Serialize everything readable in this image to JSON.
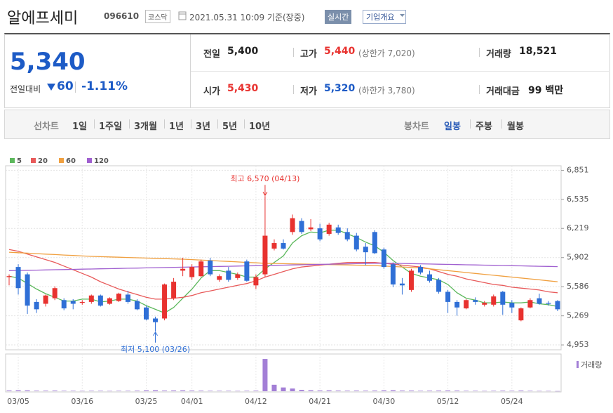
{
  "header": {
    "title": "알에프세미",
    "code": "096610",
    "market": "코스닥",
    "datetime": "2021.05.31 10:09 기준(장중)",
    "realtime": "실시간",
    "company": "기업개요"
  },
  "summary": {
    "price": "5,340",
    "change_label": "전일대비",
    "change": "60",
    "change_pct": "-1.11%",
    "rows": [
      [
        {
          "label": "전일",
          "value": "5,400"
        },
        {
          "label": "고가",
          "value": "5,440",
          "note": "(상한가 7,020)"
        },
        {
          "label": "거래량",
          "value": "18,521"
        }
      ],
      [
        {
          "label": "시가",
          "value": "5,430"
        },
        {
          "label": "저가",
          "value": "5,320",
          "note": "(하한가 3,780)"
        },
        {
          "label": "거래대금",
          "value": "99 백만"
        }
      ]
    ]
  },
  "tabs": {
    "line_chart": "선차트",
    "line_periods": [
      "1일",
      "1주일",
      "3개월",
      "1년",
      "3년",
      "5년",
      "10년"
    ],
    "candle_chart": "봉차트",
    "candle_periods": [
      "일봉",
      "주봉",
      "월봉"
    ]
  },
  "chart_data": [
    {
      "type": "candlestick",
      "categories": [
        null,
        "03/05",
        null,
        null,
        null,
        null,
        null,
        null,
        "03/16",
        null,
        null,
        null,
        null,
        null,
        null,
        "03/25",
        null,
        null,
        null,
        null,
        "04/01",
        null,
        null,
        null,
        null,
        null,
        null,
        "04/12",
        null,
        null,
        null,
        null,
        null,
        null,
        "04/21",
        null,
        null,
        null,
        null,
        null,
        null,
        "04/30",
        null,
        null,
        null,
        null,
        null,
        null,
        "05/12",
        null,
        null,
        null,
        null,
        null,
        null,
        "05/24",
        null,
        null,
        null,
        null,
        null
      ],
      "open": [
        5690,
        5800,
        5720,
        5420,
        5400,
        5460,
        5440,
        5430,
        5410,
        5420,
        5490,
        5400,
        5430,
        5500,
        5430,
        5360,
        5240,
        5240,
        5460,
        5760,
        5690,
        5700,
        5870,
        5660,
        5760,
        5680,
        5860,
        5600,
        5720,
        6000,
        6060,
        6180,
        6300,
        6210,
        6220,
        6160,
        6230,
        6180,
        6140,
        6020,
        6180,
        5990,
        5830,
        5620,
        5550,
        5800,
        5720,
        5660,
        5530,
        5420,
        5350,
        5440,
        5390,
        5390,
        5530,
        5410,
        5220,
        5360,
        5460,
        5410,
        5430
      ],
      "high": [
        5720,
        5830,
        5740,
        5450,
        5500,
        5590,
        5460,
        5450,
        5440,
        5500,
        5500,
        5470,
        5520,
        5540,
        5450,
        5380,
        5260,
        5620,
        5680,
        5900,
        5830,
        5880,
        5900,
        5720,
        5800,
        5740,
        5880,
        5720,
        6570,
        6100,
        6100,
        6370,
        6330,
        6320,
        6270,
        6280,
        6260,
        6220,
        6170,
        6060,
        6200,
        6010,
        5850,
        5680,
        5780,
        5820,
        5760,
        5680,
        5550,
        5440,
        5450,
        5470,
        5430,
        5500,
        5540,
        5440,
        5360,
        5460,
        5510,
        5430,
        5440
      ],
      "low": [
        5600,
        5500,
        5290,
        5300,
        5370,
        5440,
        5330,
        5340,
        5390,
        5400,
        5370,
        5390,
        5420,
        5400,
        5330,
        5220,
        5100,
        5220,
        5440,
        5700,
        5660,
        5690,
        5700,
        5640,
        5640,
        5660,
        5640,
        5560,
        5690,
        5980,
        5990,
        6150,
        6160,
        6190,
        6080,
        6140,
        6150,
        6080,
        5970,
        5820,
        5940,
        5780,
        5580,
        5500,
        5530,
        5720,
        5630,
        5510,
        5300,
        5270,
        5340,
        5390,
        5370,
        5370,
        5280,
        5300,
        5210,
        5350,
        5390,
        5380,
        5320
      ],
      "close": [
        5700,
        5570,
        5380,
        5340,
        5490,
        5570,
        5350,
        5400,
        5420,
        5490,
        5380,
        5460,
        5510,
        5420,
        5340,
        5230,
        5200,
        5610,
        5640,
        5780,
        5800,
        5860,
        5720,
        5700,
        5660,
        5720,
        5650,
        5690,
        6140,
        6060,
        6000,
        6330,
        6180,
        6230,
        6100,
        6260,
        6170,
        6100,
        5990,
        5960,
        5950,
        5800,
        5610,
        5600,
        5760,
        5740,
        5650,
        5530,
        5420,
        5360,
        5440,
        5420,
        5410,
        5480,
        5390,
        5360,
        5350,
        5440,
        5400,
        5400,
        5340
      ],
      "up_color": "#e8322f",
      "down_color": "#2f6fd6",
      "series": [
        {
          "name": "5",
          "color": "#5cb85c",
          "values": [
            5700,
            5680,
            5620,
            5560,
            5510,
            5470,
            5430,
            5430,
            5450,
            5450,
            5420,
            5430,
            5450,
            5450,
            5430,
            5380,
            5340,
            5300,
            5360,
            5460,
            5560,
            5680,
            5760,
            5760,
            5740,
            5720,
            5690,
            5690,
            5780,
            5850,
            5920,
            6060,
            6140,
            6180,
            6170,
            6200,
            6200,
            6160,
            6120,
            6070,
            6030,
            5960,
            5870,
            5800,
            5730,
            5700,
            5680,
            5660,
            5610,
            5520,
            5460,
            5440,
            5410,
            5410,
            5420,
            5410,
            5410,
            5420,
            5400,
            5390,
            5370
          ]
        },
        {
          "name": "20",
          "color": "#e85a5a",
          "values": [
            5990,
            5970,
            5940,
            5910,
            5880,
            5850,
            5810,
            5770,
            5730,
            5690,
            5640,
            5600,
            5560,
            5530,
            5500,
            5470,
            5450,
            5450,
            5460,
            5470,
            5490,
            5520,
            5540,
            5560,
            5580,
            5600,
            5620,
            5650,
            5690,
            5720,
            5750,
            5780,
            5800,
            5810,
            5820,
            5830,
            5840,
            5850,
            5850,
            5850,
            5850,
            5840,
            5830,
            5820,
            5810,
            5800,
            5780,
            5750,
            5720,
            5700,
            5670,
            5650,
            5630,
            5610,
            5600,
            5580,
            5570,
            5560,
            5550,
            5530,
            5520
          ]
        },
        {
          "name": "60",
          "color": "#f0a040",
          "values": [
            5960,
            5955,
            5950,
            5945,
            5940,
            5935,
            5930,
            5925,
            5920,
            5915,
            5912,
            5909,
            5906,
            5903,
            5900,
            5897,
            5894,
            5891,
            5888,
            5885,
            5880,
            5875,
            5870,
            5865,
            5860,
            5855,
            5850,
            5845,
            5840,
            5838,
            5836,
            5834,
            5832,
            5830,
            5828,
            5826,
            5824,
            5822,
            5820,
            5818,
            5815,
            5810,
            5805,
            5800,
            5795,
            5790,
            5780,
            5770,
            5760,
            5750,
            5740,
            5730,
            5720,
            5710,
            5700,
            5690,
            5680,
            5670,
            5660,
            5650,
            5640
          ]
        },
        {
          "name": "120",
          "color": "#a060d0",
          "values": [
            5760,
            5762,
            5764,
            5766,
            5768,
            5770,
            5772,
            5774,
            5776,
            5778,
            5780,
            5782,
            5784,
            5786,
            5788,
            5790,
            5792,
            5794,
            5796,
            5798,
            5800,
            5802,
            5804,
            5806,
            5808,
            5810,
            5812,
            5814,
            5816,
            5818,
            5820,
            5822,
            5824,
            5826,
            5828,
            5830,
            5832,
            5834,
            5836,
            5838,
            5840,
            5840,
            5840,
            5838,
            5836,
            5834,
            5832,
            5830,
            5828,
            5826,
            5824,
            5822,
            5820,
            5818,
            5816,
            5814,
            5812,
            5810,
            5808,
            5806,
            5804
          ]
        }
      ],
      "ylim": [
        4900,
        6900
      ],
      "yticks": [
        {
          "value": 6851,
          "label": "6,851"
        },
        {
          "value": 6535,
          "label": "6,535"
        },
        {
          "value": 6219,
          "label": "6,219"
        },
        {
          "value": 5902,
          "label": "5,902"
        },
        {
          "value": 5586,
          "label": "5,586"
        },
        {
          "value": 5269,
          "label": "5,269"
        },
        {
          "value": 4953,
          "label": "4,953"
        }
      ],
      "grid": true,
      "annotations": {
        "high": "최고 6,570 (04/13)",
        "low": "최저 5,100 (03/26)"
      }
    },
    {
      "type": "bar",
      "series": [
        {
          "name": "거래량",
          "color": "#a37fd6",
          "values": [
            70000,
            90000,
            80000,
            50000,
            50000,
            60000,
            40000,
            40000,
            30000,
            40000,
            40000,
            30000,
            40000,
            40000,
            50000,
            80000,
            90000,
            60000,
            70000,
            80000,
            60000,
            50000,
            40000,
            40000,
            40000,
            30000,
            40000,
            50000,
            3000000,
            600000,
            350000,
            250000,
            120000,
            90000,
            70000,
            80000,
            60000,
            50000,
            60000,
            50000,
            60000,
            80000,
            90000,
            60000,
            60000,
            40000,
            50000,
            60000,
            70000,
            60000,
            40000,
            40000,
            30000,
            40000,
            50000,
            40000,
            60000,
            40000,
            30000,
            30000,
            18521
          ]
        }
      ],
      "ylim": [
        0,
        3200000
      ]
    }
  ]
}
